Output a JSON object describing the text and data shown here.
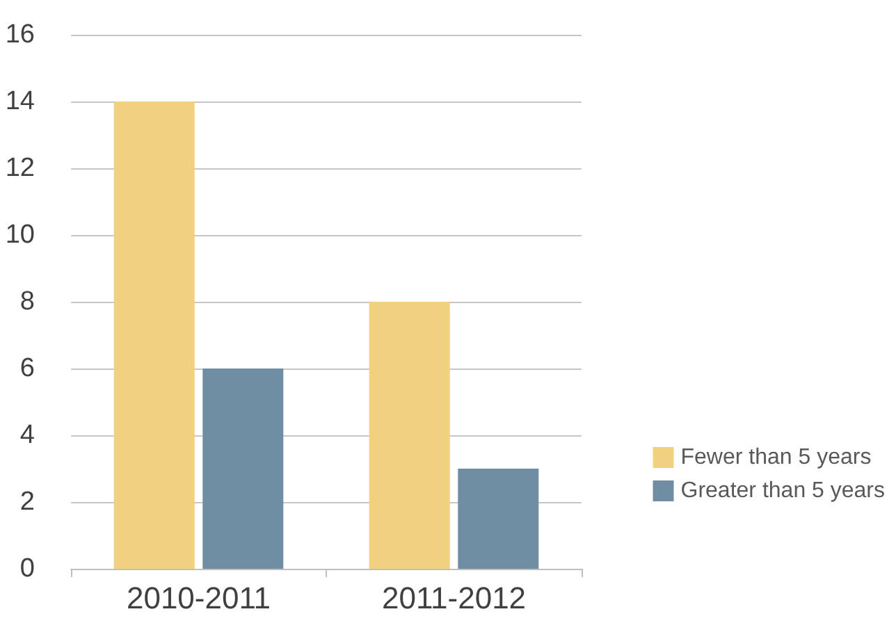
{
  "chart_data": {
    "type": "bar",
    "categories": [
      "2010-2011",
      "2011-2012"
    ],
    "series": [
      {
        "name": "Fewer than 5 years",
        "color": "#f2d082",
        "values": [
          14,
          8
        ]
      },
      {
        "name": "Greater than 5 years",
        "color": "#6f8ea3",
        "values": [
          6,
          3
        ]
      }
    ],
    "ylim": [
      0,
      16
    ],
    "yticks": [
      0,
      2,
      4,
      6,
      8,
      10,
      12,
      14,
      16
    ],
    "grid": "y",
    "legend": "right"
  }
}
